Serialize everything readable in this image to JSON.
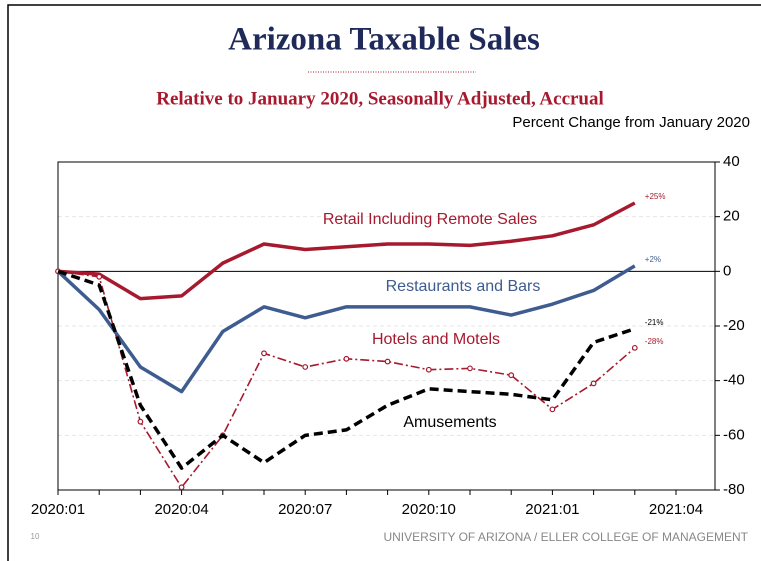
{
  "chart_data": {
    "type": "line",
    "title": "Arizona Taxable Sales",
    "subtitle": "Relative to January 2020, Seasonally Adjusted, Accrual",
    "y_axis_label": "Percent Change from January 2020",
    "categories": [
      "2020:01",
      null,
      null,
      "2020:04",
      null,
      null,
      "2020:07",
      null,
      null,
      "2020:10",
      null,
      null,
      "2021:01",
      null,
      null,
      "2021:04"
    ],
    "series": [
      {
        "name": "Retail Including Remote Sales",
        "color": "#a6192e",
        "line_style": "solid",
        "values": [
          0,
          -1,
          -10,
          -9,
          3,
          10,
          8,
          9,
          10,
          10,
          9.5,
          11,
          13,
          17,
          25,
          null
        ],
        "value_labels": [
          null,
          null,
          null,
          null,
          null,
          null,
          null,
          null,
          null,
          null,
          null,
          null,
          null,
          null,
          "+25%",
          null
        ]
      },
      {
        "name": "Restaurants and Bars",
        "color": "#3e5c8f",
        "line_style": "solid",
        "values": [
          0,
          -14,
          -35,
          -44,
          -22,
          -13,
          -17,
          -13,
          -13,
          -13,
          -13,
          -16,
          -12,
          -7,
          2,
          null
        ],
        "value_labels": [
          null,
          null,
          null,
          null,
          null,
          null,
          null,
          null,
          null,
          null,
          null,
          null,
          null,
          null,
          "+2%",
          null
        ]
      },
      {
        "name": "Hotels and Motels",
        "color": "#a6192e",
        "line_style": "dash-dot",
        "marker": "circle",
        "values": [
          0,
          -2,
          -55,
          -79,
          -60,
          -30,
          -35,
          -32,
          -33,
          -36,
          -35.5,
          -38,
          -50.5,
          -41,
          -28,
          null
        ],
        "value_labels": [
          null,
          null,
          null,
          null,
          null,
          null,
          null,
          null,
          null,
          null,
          null,
          null,
          null,
          null,
          "-28%",
          null
        ]
      },
      {
        "name": "Amusements",
        "color": "#000000",
        "line_style": "dashed",
        "values": [
          0,
          -5,
          -49,
          -72,
          -60,
          -70,
          -60,
          -58,
          -49,
          -43,
          -44,
          -45,
          -47,
          -26,
          -21,
          null
        ],
        "value_labels": [
          null,
          null,
          null,
          null,
          null,
          null,
          null,
          null,
          null,
          null,
          null,
          null,
          null,
          null,
          "-21%",
          null
        ]
      }
    ],
    "ylim": [
      -80,
      40
    ],
    "yticks": [
      -80,
      -60,
      -40,
      -20,
      0,
      20,
      40
    ],
    "grid": true,
    "y_axis_side": "right",
    "page_number": "10",
    "footer": "UNIVERSITY OF ARIZONA / ELLER COLLEGE OF MANAGEMENT"
  }
}
